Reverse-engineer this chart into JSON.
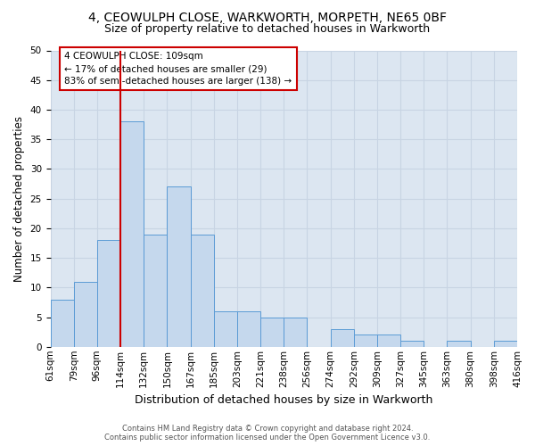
{
  "title_line1": "4, CEOWULPH CLOSE, WARKWORTH, MORPETH, NE65 0BF",
  "title_line2": "Size of property relative to detached houses in Warkworth",
  "xlabel": "Distribution of detached houses by size in Warkworth",
  "ylabel": "Number of detached properties",
  "bar_values": [
    8,
    11,
    18,
    38,
    19,
    27,
    19,
    6,
    6,
    5,
    5,
    0,
    3,
    2,
    2,
    1,
    0,
    1,
    0,
    1
  ],
  "bin_labels": [
    "61sqm",
    "79sqm",
    "96sqm",
    "114sqm",
    "132sqm",
    "150sqm",
    "167sqm",
    "185sqm",
    "203sqm",
    "221sqm",
    "238sqm",
    "256sqm",
    "274sqm",
    "292sqm",
    "309sqm",
    "327sqm",
    "345sqm",
    "363sqm",
    "380sqm",
    "398sqm",
    "416sqm"
  ],
  "bar_color": "#c5d8ed",
  "bar_edge_color": "#5b9bd5",
  "vline_x": 3.0,
  "vline_color": "#cc0000",
  "annotation_text": "4 CEOWULPH CLOSE: 109sqm\n← 17% of detached houses are smaller (29)\n83% of semi-detached houses are larger (138) →",
  "annotation_box_color": "#ffffff",
  "annotation_box_edge_color": "#cc0000",
  "ylim": [
    0,
    50
  ],
  "yticks": [
    0,
    5,
    10,
    15,
    20,
    25,
    30,
    35,
    40,
    45,
    50
  ],
  "grid_color": "#c8d4e3",
  "background_color": "#dce6f1",
  "footer_text": "Contains HM Land Registry data © Crown copyright and database right 2024.\nContains public sector information licensed under the Open Government Licence v3.0.",
  "title_fontsize": 10,
  "subtitle_fontsize": 9,
  "xlabel_fontsize": 9,
  "ylabel_fontsize": 8.5,
  "tick_fontsize": 7.5,
  "annotation_fontsize": 7.5,
  "footer_fontsize": 6
}
